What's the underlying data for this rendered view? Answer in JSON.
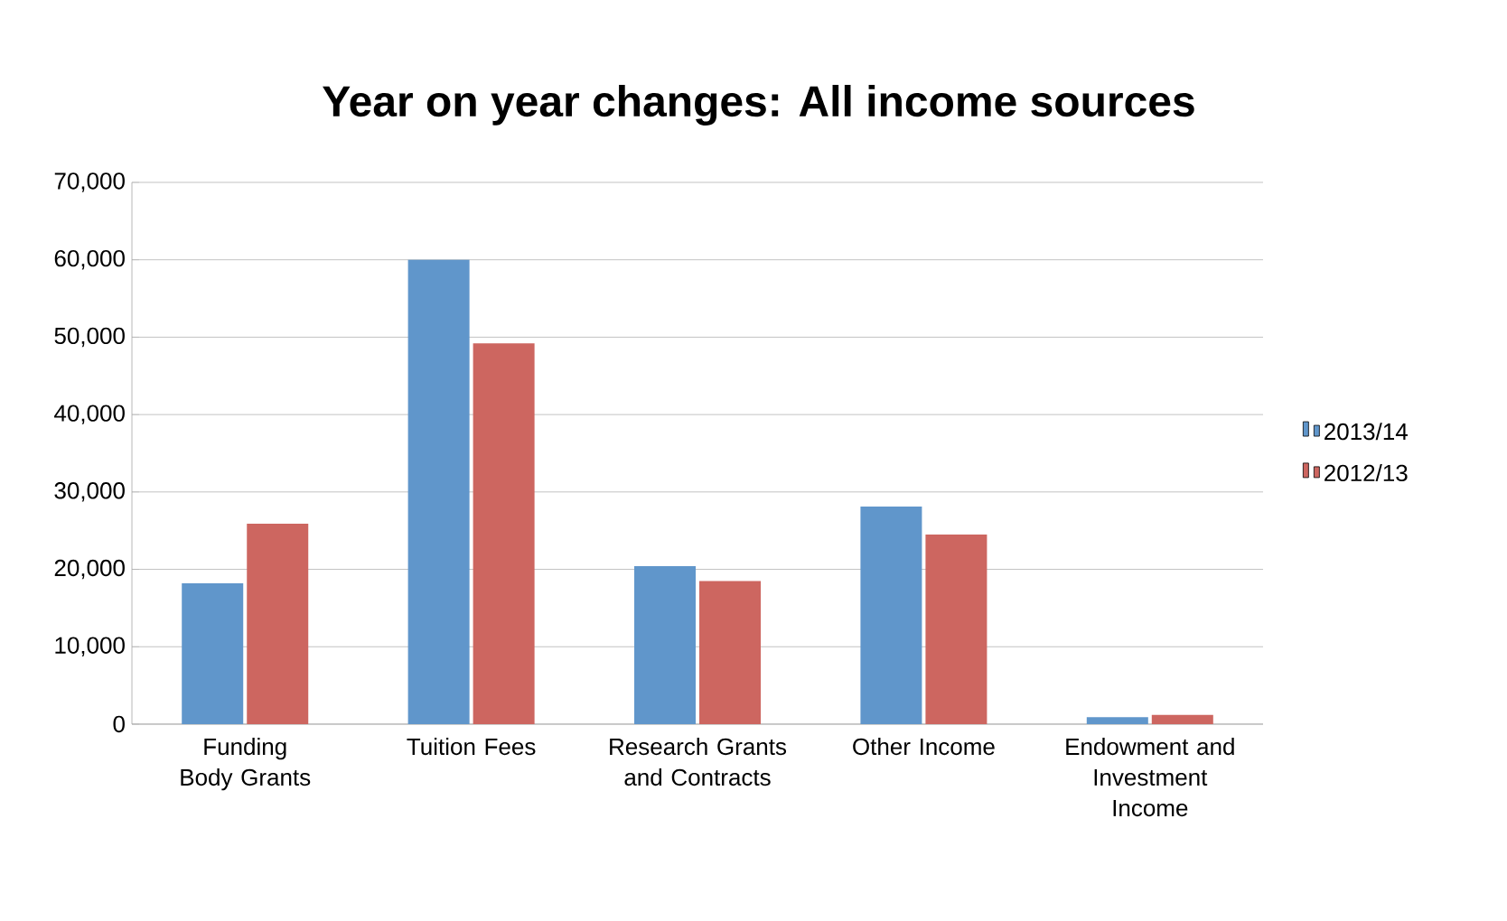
{
  "chart_data": {
    "type": "bar",
    "title": "Year on year changes: All income sources",
    "categories": [
      "Funding Body Grants",
      "Tuition Fees",
      "Research Grants and Contracts",
      "Other Income",
      "Endowment and Investment Income"
    ],
    "series": [
      {
        "name": "2013/14",
        "color": "#6096cb",
        "values": [
          18200,
          60000,
          20400,
          28100,
          900
        ]
      },
      {
        "name": "2012/13",
        "color": "#cd6660",
        "values": [
          25900,
          49200,
          18500,
          24500,
          1200
        ]
      }
    ],
    "ylim": [
      0,
      70000
    ],
    "yticks": [
      {
        "value": 0,
        "label": "0"
      },
      {
        "value": 10000,
        "label": "10,000"
      },
      {
        "value": 20000,
        "label": "20,000"
      },
      {
        "value": 30000,
        "label": "30,000"
      },
      {
        "value": 40000,
        "label": "40,000"
      },
      {
        "value": 50000,
        "label": "50,000"
      },
      {
        "value": 60000,
        "label": "60,000"
      },
      {
        "value": 70000,
        "label": "70,000"
      }
    ],
    "grid": "y",
    "legend": "right"
  }
}
